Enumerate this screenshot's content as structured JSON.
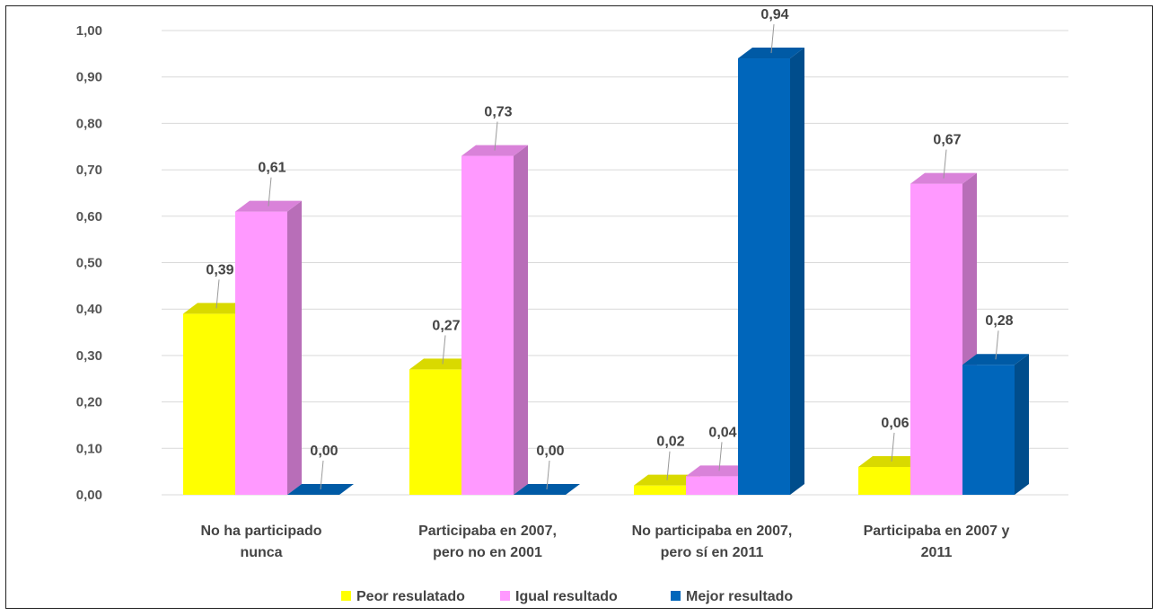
{
  "chart_data": {
    "type": "bar",
    "title": "",
    "xlabel": "",
    "ylabel": "",
    "ylim": [
      0,
      1.0
    ],
    "yticks": [
      "0,00",
      "0,10",
      "0,20",
      "0,30",
      "0,40",
      "0,50",
      "0,60",
      "0,70",
      "0,80",
      "0,90",
      "1,00"
    ],
    "categories": [
      [
        "No ha participado",
        "nunca"
      ],
      [
        "Participaba en 2007,",
        "pero no en 2001"
      ],
      [
        "No participaba en 2007,",
        "pero sí en 2011"
      ],
      [
        "Participaba en 2007 y",
        "2011"
      ]
    ],
    "series": [
      {
        "name": "Peor resulatado",
        "color": "#FFFF00",
        "values": [
          0.39,
          0.27,
          0.02,
          0.06
        ],
        "labels": [
          "0,39",
          "0,27",
          "0,02",
          "0,06"
        ]
      },
      {
        "name": "Igual resultado",
        "color": "#FF99FF",
        "values": [
          0.61,
          0.73,
          0.04,
          0.67
        ],
        "labels": [
          "0,61",
          "0,73",
          "0,04",
          "0,67"
        ]
      },
      {
        "name": "Mejor resultado",
        "color": "#0066BB",
        "values": [
          0.0,
          0.0,
          0.94,
          0.28
        ],
        "labels": [
          "0,00",
          "0,00",
          "0,94",
          "0,28"
        ]
      }
    ],
    "legend_position": "bottom",
    "grid": true,
    "style": "3d-column"
  }
}
